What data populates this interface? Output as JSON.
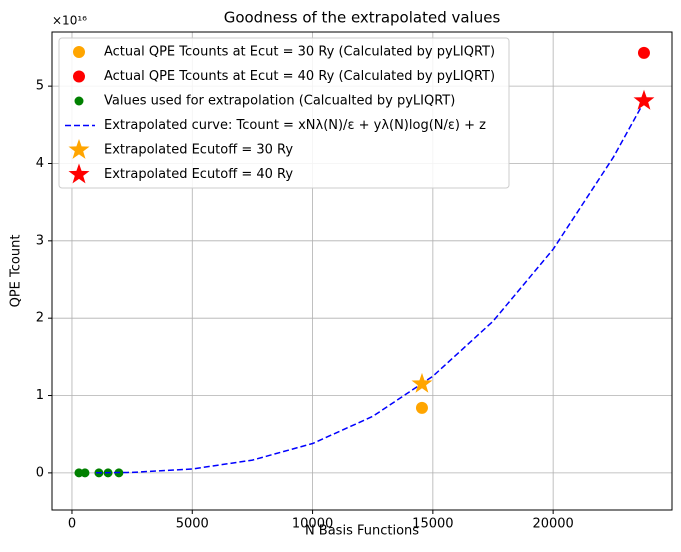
{
  "chart_data": {
    "type": "scatter",
    "title": "Goodness of the extrapolated values",
    "xlabel": "N Basis Functions",
    "ylabel": "QPE Tcount",
    "offset_label": "×10¹⁶",
    "xlim": [
      -830,
      24940
    ],
    "ylim": [
      -0.48,
      5.7
    ],
    "xticks": [
      0,
      5000,
      10000,
      15000,
      20000
    ],
    "yticks": [
      0,
      1,
      2,
      3,
      4,
      5
    ],
    "grid": true,
    "legend": "upper left",
    "series": [
      {
        "name": "Actual QPE Tcounts at Ecut = 30 Ry (Calculated by pyLIQRT)",
        "color": "#ffa500",
        "marker": "circle",
        "x": [
          14547
        ],
        "values": [
          0.84
        ]
      },
      {
        "name": "Actual QPE Tcounts at Ecut = 40 Ry (Calculated by pyLIQRT)",
        "color": "#ff0000",
        "marker": "circle",
        "x": [
          23775
        ],
        "values": [
          5.43
        ]
      },
      {
        "name": "Values used for extrapolation (Calcualted by pyLIQRT)",
        "color": "#008000",
        "marker": "small-circle",
        "x": [
          290,
          540,
          1120,
          1500,
          1950
        ],
        "values": [
          0,
          0,
          0,
          0,
          0
        ]
      },
      {
        "name": "Extrapolated curve: Tcount = xNλ(N)/ε + yλ(N)log(N/ε) + z",
        "color": "#0000ff",
        "marker": "dashed-line",
        "x": [
          1000,
          2500,
          5000,
          7500,
          10000,
          12500,
          15000,
          17500,
          20000,
          22500,
          23800
        ],
        "values": [
          0.0005,
          0.0067,
          0.05,
          0.165,
          0.38,
          0.73,
          1.25,
          1.96,
          2.89,
          4.08,
          4.81
        ]
      },
      {
        "name": "Extrapolated Ecutoff = 30 Ry",
        "color": "#ffa500",
        "marker": "star",
        "x": [
          14547
        ],
        "values": [
          1.15
        ]
      },
      {
        "name": "Extrapolated Ecutoff = 40 Ry",
        "color": "#ff0000",
        "marker": "star",
        "x": [
          23775
        ],
        "values": [
          4.81
        ]
      }
    ]
  }
}
